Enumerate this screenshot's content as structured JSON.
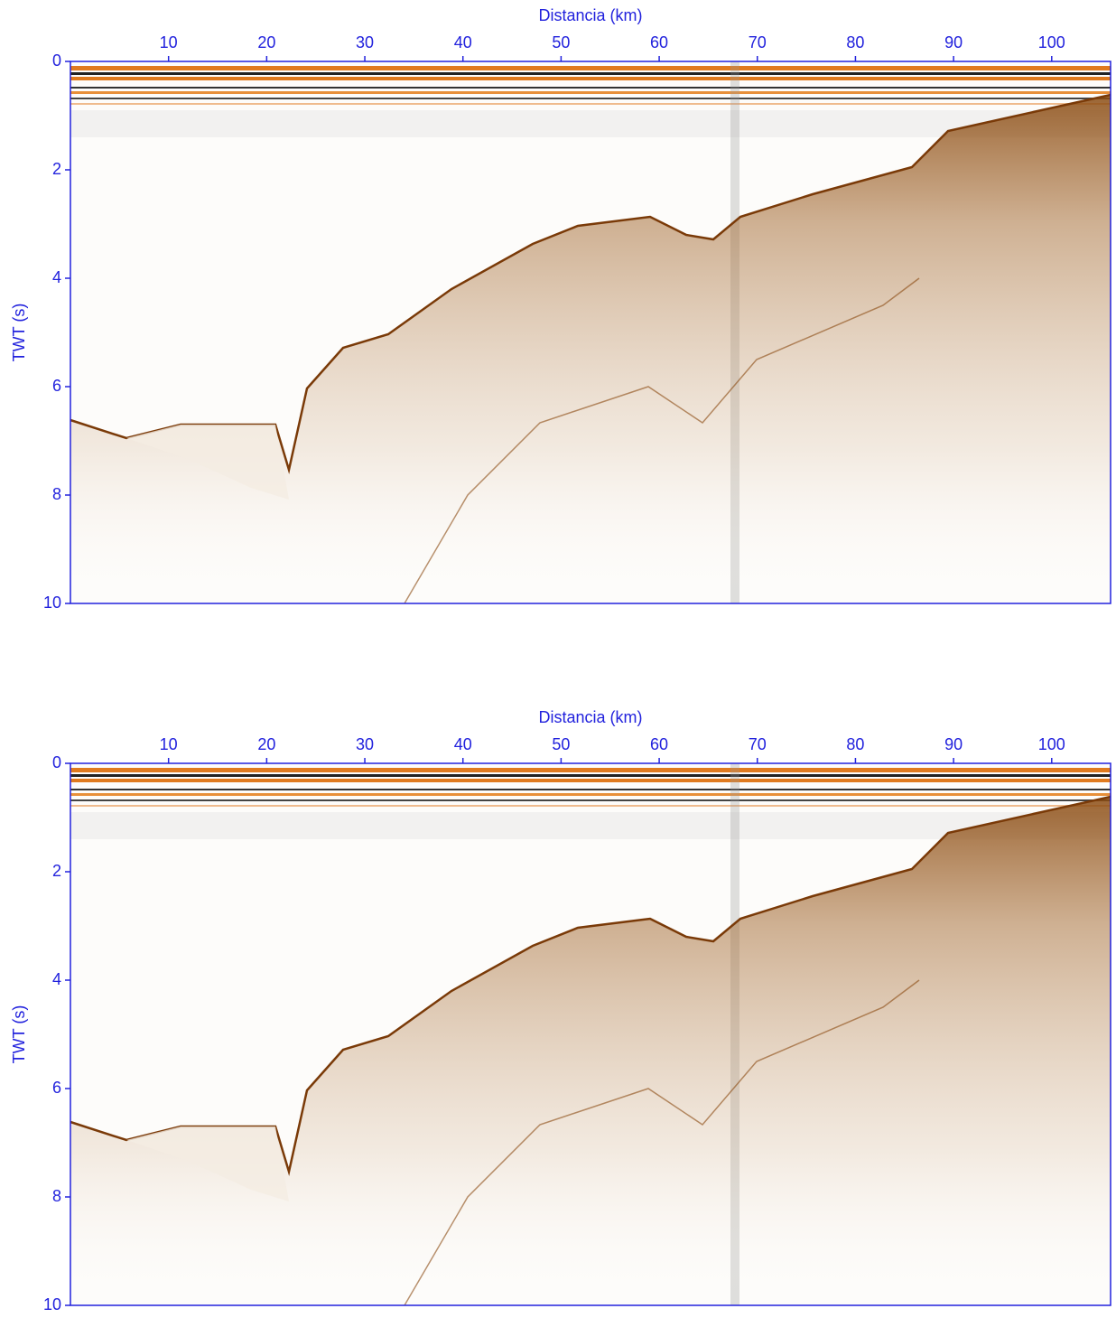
{
  "chart_data": [
    {
      "type": "seismic",
      "xlabel": "Distancia (km)",
      "ylabel": "TWT (s)",
      "xlim": [
        0,
        106
      ],
      "ylim": [
        0,
        10
      ],
      "y_inverted": true,
      "axis_color": "#2222dd",
      "xticks": [
        10,
        20,
        30,
        40,
        50,
        60,
        70,
        80,
        90,
        100
      ],
      "yticks": [
        0,
        2,
        4,
        6,
        8,
        10
      ]
    },
    {
      "type": "seismic",
      "xlabel": "Distancia (km)",
      "ylabel": "TWT (s)",
      "xlim": [
        0,
        106
      ],
      "ylim": [
        0,
        10
      ],
      "y_inverted": true,
      "axis_color": "#2222dd",
      "xticks": [
        10,
        20,
        30,
        40,
        50,
        60,
        70,
        80,
        90,
        100
      ],
      "yticks": [
        0,
        2,
        4,
        6,
        8,
        10
      ]
    }
  ]
}
